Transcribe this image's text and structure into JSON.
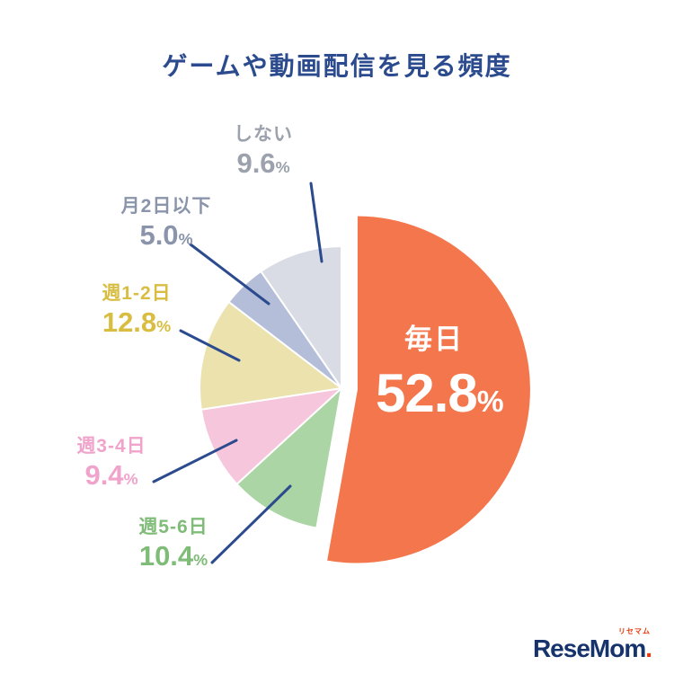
{
  "page": {
    "background": "#FFFFFF"
  },
  "title_color": "#2B4B8E",
  "chart_data": {
    "type": "pie",
    "title": "ゲームや動画配信を見る頻度",
    "unit": "%",
    "start_angle_deg": 0,
    "direction": "clockwise",
    "legend_position": "callouts-left",
    "leader_line_color": "#2B4B8E",
    "slices": [
      {
        "id": "every-day",
        "label": "毎日",
        "value": 52.8,
        "display": "52.8",
        "color": "#F4764C",
        "label_color": "#FFFFFF",
        "exploded": true
      },
      {
        "id": "week-5-6",
        "label": "週5-6日",
        "value": 10.4,
        "display": "10.4",
        "color": "#ABD5A5",
        "label_color": "#7FBC78",
        "exploded": false
      },
      {
        "id": "week-3-4",
        "label": "週3-4日",
        "value": 9.4,
        "display": "9.4",
        "color": "#F5C6DC",
        "label_color": "#F0A3CB",
        "exploded": false
      },
      {
        "id": "week-1-2",
        "label": "週1-2日",
        "value": 12.8,
        "display": "12.8",
        "color": "#EBE2AE",
        "label_color": "#D9BD41",
        "exploded": false
      },
      {
        "id": "month-2-or-less",
        "label": "月2日以下",
        "value": 5.0,
        "display": "5.0",
        "color": "#B4BED9",
        "label_color": "#8A94AB",
        "exploded": false
      },
      {
        "id": "none",
        "label": "しない",
        "value": 9.6,
        "display": "9.6",
        "color": "#D9DCE4",
        "label_color": "#9BA1AD",
        "exploded": false
      }
    ]
  },
  "logo": {
    "wordmark": "ReseMom",
    "dot": ".",
    "kana": "リセマム",
    "color": "#17336B",
    "dot_color": "#E8380D"
  }
}
